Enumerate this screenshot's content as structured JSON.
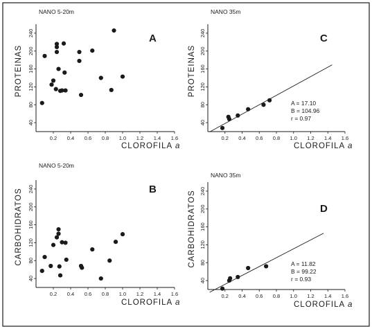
{
  "colors": {
    "ink": "#1a1a1a",
    "background": "#ffffff"
  },
  "chart_data": [
    {
      "type": "scatter",
      "panel_letter": "A",
      "subtitle": "NANO 5-20m",
      "xlabel": "CLOROFILA",
      "xlabel_suffix": "a",
      "ylabel": "PROTEINAS",
      "xlim": [
        0,
        1.6
      ],
      "ylim": [
        20,
        260
      ],
      "xticks": [
        "0.2",
        "0.4",
        "0.6",
        "0.8",
        "1.0",
        "1.2",
        "1.4",
        "1.6"
      ],
      "yticks": [
        "40",
        "80",
        "120",
        "160",
        "200",
        "240"
      ],
      "x": [
        0.07,
        0.1,
        0.18,
        0.2,
        0.23,
        0.24,
        0.24,
        0.24,
        0.26,
        0.28,
        0.3,
        0.32,
        0.33,
        0.34,
        0.5,
        0.5,
        0.52,
        0.65,
        0.75,
        0.87,
        0.9,
        1.0
      ],
      "y": [
        84,
        189,
        125,
        134,
        115,
        209,
        198,
        216,
        160,
        111,
        112,
        217,
        152,
        112,
        198,
        178,
        102,
        201,
        140,
        113,
        246,
        143
      ],
      "regression": null,
      "stats": null
    },
    {
      "type": "scatter",
      "panel_letter": "C",
      "subtitle": "NANO 35m",
      "xlabel": "CLOROFILA",
      "xlabel_suffix": "a",
      "ylabel": "PROTEINAS",
      "xlim": [
        0,
        1.6
      ],
      "ylim": [
        20,
        260
      ],
      "xticks": [
        "0.2",
        "0.4",
        "0.6",
        "0.8",
        "1.0",
        "1.2",
        "1.4",
        "1.6"
      ],
      "yticks": [
        "40",
        "80",
        "120",
        "160",
        "200",
        "240"
      ],
      "x": [
        0.17,
        0.24,
        0.25,
        0.35,
        0.47,
        0.65,
        0.72
      ],
      "y": [
        28,
        53,
        48,
        56,
        70,
        80,
        90
      ],
      "regression": {
        "intercept": 17.1,
        "slope": 104.96,
        "x_range": [
          0.02,
          1.45
        ]
      },
      "stats": [
        "A = 17.10",
        "B = 104.96",
        "r = 0.97"
      ]
    },
    {
      "type": "scatter",
      "panel_letter": "B",
      "subtitle": "NANO 5-20m",
      "xlabel": "CLOROFILA",
      "xlabel_suffix": "a",
      "ylabel": "CARBOHIDRATOS",
      "xlim": [
        0,
        1.6
      ],
      "ylim": [
        20,
        260
      ],
      "xticks": [
        "0.2",
        "0.4",
        "0.6",
        "0.8",
        "1.0",
        "1.2",
        "1.4",
        "1.6"
      ],
      "yticks": [
        "40",
        "80",
        "120",
        "160",
        "200",
        "240"
      ],
      "x": [
        0.07,
        0.1,
        0.17,
        0.2,
        0.24,
        0.26,
        0.26,
        0.27,
        0.28,
        0.3,
        0.34,
        0.35,
        0.52,
        0.53,
        0.65,
        0.75,
        0.85,
        0.92,
        1.0
      ],
      "y": [
        57,
        88,
        68,
        115,
        132,
        150,
        140,
        67,
        47,
        121,
        120,
        82,
        68,
        64,
        105,
        40,
        80,
        122,
        139
      ],
      "regression": null,
      "stats": null
    },
    {
      "type": "scatter",
      "panel_letter": "D",
      "subtitle": "NANO 35m",
      "xlabel": "CLOROFILA",
      "xlabel_suffix": "a",
      "ylabel": "CARBOHIDRATOS",
      "xlim": [
        0,
        1.6
      ],
      "ylim": [
        20,
        260
      ],
      "xticks": [
        "0.2",
        "0.4",
        "0.6",
        "0.8",
        "1.0",
        "1.2",
        "1.4",
        "1.6"
      ],
      "yticks": [
        "40",
        "80",
        "120",
        "160",
        "200",
        "240"
      ],
      "x": [
        0.17,
        0.25,
        0.26,
        0.35,
        0.47,
        0.68
      ],
      "y": [
        22,
        40,
        45,
        48,
        68,
        72
      ],
      "regression": {
        "intercept": 11.82,
        "slope": 99.22,
        "x_range": [
          0.02,
          1.35
        ]
      },
      "stats": [
        "A = 11.82",
        "B = 99.22",
        "r = 0.93"
      ]
    }
  ]
}
